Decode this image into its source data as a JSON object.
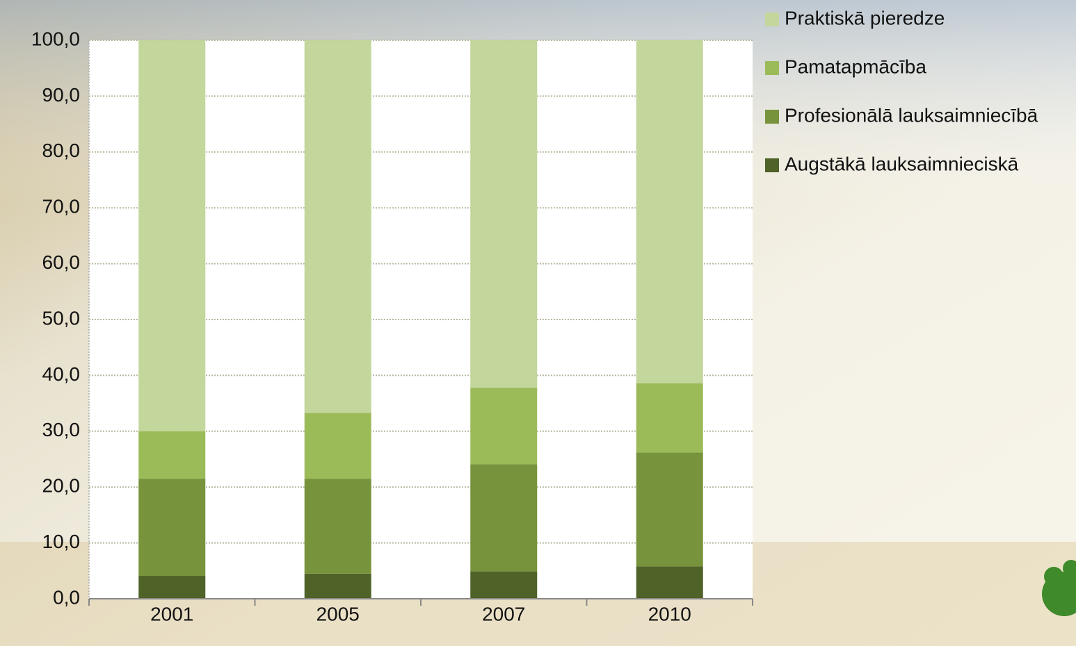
{
  "chart_data": {
    "type": "stacked_bar",
    "categories": [
      "2001",
      "2005",
      "2007",
      "2010"
    ],
    "series": [
      {
        "name": "Augstākā lauksaimnieciskā",
        "color": "#4f6228",
        "values": [
          4.1,
          4.5,
          4.9,
          5.8
        ]
      },
      {
        "name": "Profesionālā lauksaimniecībā",
        "color": "#77933c",
        "values": [
          17.4,
          17.0,
          19.2,
          20.4
        ]
      },
      {
        "name": "Pamatapmācība",
        "color": "#9bbb59",
        "values": [
          8.5,
          11.8,
          13.7,
          12.4
        ]
      },
      {
        "name": "Praktiskā pieredze",
        "color": "#c3d69b",
        "values": [
          70.0,
          66.7,
          62.2,
          61.4
        ]
      }
    ],
    "ylim": [
      0,
      100
    ],
    "yticks": [
      {
        "value": 0,
        "label": "0,0"
      },
      {
        "value": 10,
        "label": "10,0"
      },
      {
        "value": 20,
        "label": "20,0"
      },
      {
        "value": 30,
        "label": "30,0"
      },
      {
        "value": 40,
        "label": "40,0"
      },
      {
        "value": 50,
        "label": "50,0"
      },
      {
        "value": 60,
        "label": "60,0"
      },
      {
        "value": 70,
        "label": "70,0"
      },
      {
        "value": 80,
        "label": "80,0"
      },
      {
        "value": 90,
        "label": "90,0"
      },
      {
        "value": 100,
        "label": "100,0"
      }
    ],
    "grid": true
  }
}
